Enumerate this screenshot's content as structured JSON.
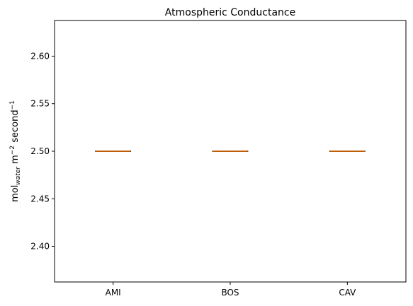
{
  "chart_data": {
    "type": "box",
    "title": "Atmospheric Conductance",
    "ylabel": {
      "base": "mol",
      "subscript": "water",
      "rest": " m",
      "sup1": "−2",
      "rest2": " second",
      "sup2": "−1"
    },
    "xlabel": "",
    "categories": [
      "AMI",
      "BOS",
      "CAV"
    ],
    "series": [
      {
        "values": [
          {
            "category": "AMI",
            "min": 2.5,
            "q1": 2.5,
            "median": 2.5,
            "q3": 2.5,
            "max": 2.5
          },
          {
            "category": "BOS",
            "min": 2.5,
            "q1": 2.5,
            "median": 2.5,
            "q3": 2.5,
            "max": 2.5
          },
          {
            "category": "CAV",
            "min": 2.5,
            "q1": 2.5,
            "median": 2.5,
            "q3": 2.5,
            "max": 2.5
          }
        ]
      }
    ],
    "ylim": [
      2.3625,
      2.6375
    ],
    "yticks": [
      2.4,
      2.45,
      2.5,
      2.55,
      2.6
    ],
    "ytick_labels": [
      "2.40",
      "2.45",
      "2.50",
      "2.55",
      "2.60"
    ],
    "grid": false,
    "colors": {
      "box": "#000000",
      "median": "#ff7f0e",
      "axes": "#000000"
    }
  }
}
